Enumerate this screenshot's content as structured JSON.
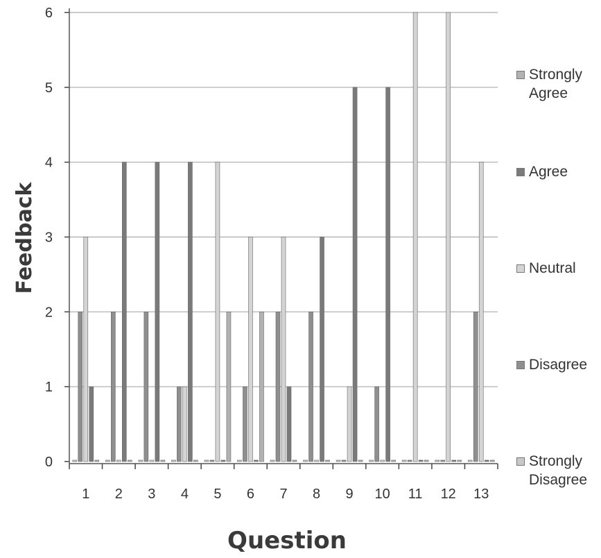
{
  "chart_data": {
    "type": "bar",
    "title": "",
    "xlabel": "Question",
    "ylabel": "Feedback",
    "ylim": [
      0,
      6
    ],
    "yticks": [
      "0",
      "1",
      "2",
      "3",
      "4",
      "5",
      "6"
    ],
    "categories": [
      "1",
      "2",
      "3",
      "4",
      "5",
      "6",
      "7",
      "8",
      "9",
      "10",
      "11",
      "12",
      "13"
    ],
    "grid": true,
    "legend_position": "right",
    "series": [
      {
        "name": "Strongly Disagree",
        "values": [
          0,
          0,
          0,
          0,
          0,
          0,
          0,
          0,
          0,
          0,
          0,
          0,
          0
        ],
        "color": "#c8c8c8"
      },
      {
        "name": "Disagree",
        "values": [
          2,
          2,
          2,
          1,
          0,
          1,
          2,
          2,
          0,
          1,
          0,
          0,
          2
        ],
        "color": "#8f8f8f"
      },
      {
        "name": "Neutral",
        "values": [
          3,
          0,
          0,
          1,
          4,
          3,
          3,
          0,
          1,
          0,
          6,
          6,
          4
        ],
        "color": "#d4d4d4"
      },
      {
        "name": "Agree",
        "values": [
          1,
          4,
          4,
          4,
          0,
          0,
          1,
          3,
          5,
          5,
          0,
          0,
          0
        ],
        "color": "#7a7a7a"
      },
      {
        "name": "Strongly Agree",
        "values": [
          0,
          0,
          0,
          0,
          2,
          2,
          0,
          0,
          0,
          0,
          0,
          0,
          0
        ],
        "color": "#b2b2b2"
      }
    ]
  },
  "legend_order": [
    "Strongly Agree",
    "Agree",
    "Neutral",
    "Disagree",
    "Strongly Disagree"
  ],
  "legend_labels": [
    "Strongly\nAgree",
    "Agree",
    "Neutral",
    "Disagree",
    "Strongly\nDisagree"
  ]
}
